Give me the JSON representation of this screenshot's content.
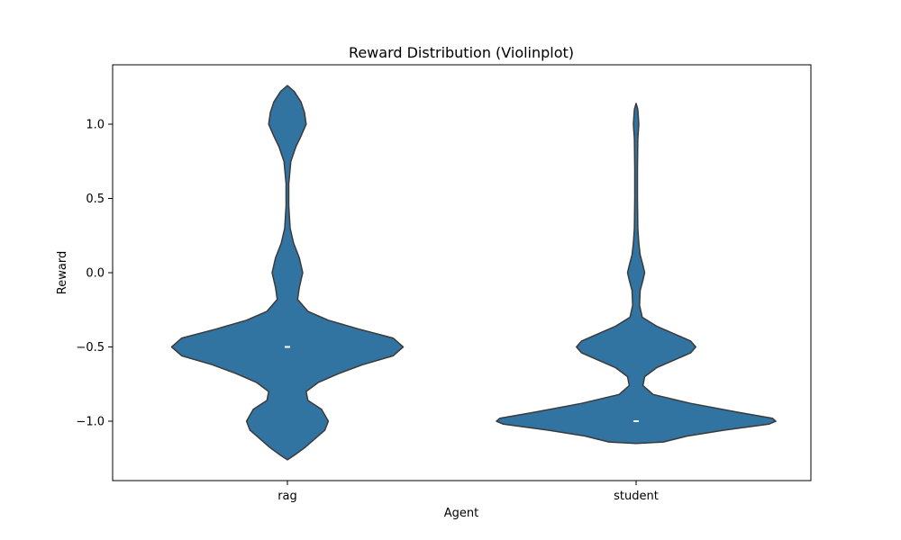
{
  "chart_data": {
    "type": "violin",
    "title": "Reward Distribution (Violinplot)",
    "xlabel": "Agent",
    "ylabel": "Reward",
    "ylim": [
      -1.4,
      1.4
    ],
    "yticks": [
      -1.0,
      -0.5,
      0.0,
      0.5,
      1.0
    ],
    "ytick_labels": [
      "−1.0",
      "−0.5",
      "0.0",
      "0.5",
      "1.0"
    ],
    "categories": [
      "rag",
      "student"
    ],
    "violin_color": "#3274a1",
    "outline_color": "#3a3a3a",
    "median_color": "#ffffff",
    "grid": false,
    "violins": [
      {
        "category": "rag",
        "median": -0.5,
        "density": [
          [
            1.26,
            0.0
          ],
          [
            1.22,
            0.02
          ],
          [
            1.15,
            0.04
          ],
          [
            1.08,
            0.05
          ],
          [
            1.0,
            0.055
          ],
          [
            0.92,
            0.04
          ],
          [
            0.85,
            0.025
          ],
          [
            0.75,
            0.01
          ],
          [
            0.6,
            0.004
          ],
          [
            0.45,
            0.004
          ],
          [
            0.3,
            0.008
          ],
          [
            0.2,
            0.018
          ],
          [
            0.1,
            0.035
          ],
          [
            0.0,
            0.045
          ],
          [
            -0.1,
            0.035
          ],
          [
            -0.18,
            0.03
          ],
          [
            -0.26,
            0.06
          ],
          [
            -0.32,
            0.12
          ],
          [
            -0.38,
            0.21
          ],
          [
            -0.44,
            0.31
          ],
          [
            -0.5,
            0.34
          ],
          [
            -0.56,
            0.31
          ],
          [
            -0.62,
            0.22
          ],
          [
            -0.68,
            0.15
          ],
          [
            -0.74,
            0.09
          ],
          [
            -0.8,
            0.055
          ],
          [
            -0.86,
            0.06
          ],
          [
            -0.92,
            0.1
          ],
          [
            -1.0,
            0.12
          ],
          [
            -1.06,
            0.11
          ],
          [
            -1.12,
            0.08
          ],
          [
            -1.18,
            0.05
          ],
          [
            -1.23,
            0.02
          ],
          [
            -1.26,
            0.0
          ]
        ]
      },
      {
        "category": "student",
        "median": -1.0,
        "density": [
          [
            1.14,
            0.0
          ],
          [
            1.1,
            0.005
          ],
          [
            1.0,
            0.008
          ],
          [
            0.9,
            0.005
          ],
          [
            0.7,
            0.004
          ],
          [
            0.5,
            0.004
          ],
          [
            0.3,
            0.005
          ],
          [
            0.2,
            0.008
          ],
          [
            0.12,
            0.012
          ],
          [
            0.05,
            0.02
          ],
          [
            0.0,
            0.025
          ],
          [
            -0.05,
            0.02
          ],
          [
            -0.12,
            0.012
          ],
          [
            -0.22,
            0.01
          ],
          [
            -0.3,
            0.018
          ],
          [
            -0.36,
            0.06
          ],
          [
            -0.42,
            0.12
          ],
          [
            -0.46,
            0.16
          ],
          [
            -0.5,
            0.175
          ],
          [
            -0.54,
            0.16
          ],
          [
            -0.58,
            0.12
          ],
          [
            -0.64,
            0.06
          ],
          [
            -0.7,
            0.025
          ],
          [
            -0.76,
            0.02
          ],
          [
            -0.82,
            0.05
          ],
          [
            -0.88,
            0.16
          ],
          [
            -0.94,
            0.3
          ],
          [
            -0.98,
            0.4
          ],
          [
            -1.0,
            0.41
          ],
          [
            -1.02,
            0.39
          ],
          [
            -1.06,
            0.26
          ],
          [
            -1.1,
            0.15
          ],
          [
            -1.14,
            0.08
          ],
          [
            -1.15,
            0.0
          ]
        ]
      }
    ]
  }
}
